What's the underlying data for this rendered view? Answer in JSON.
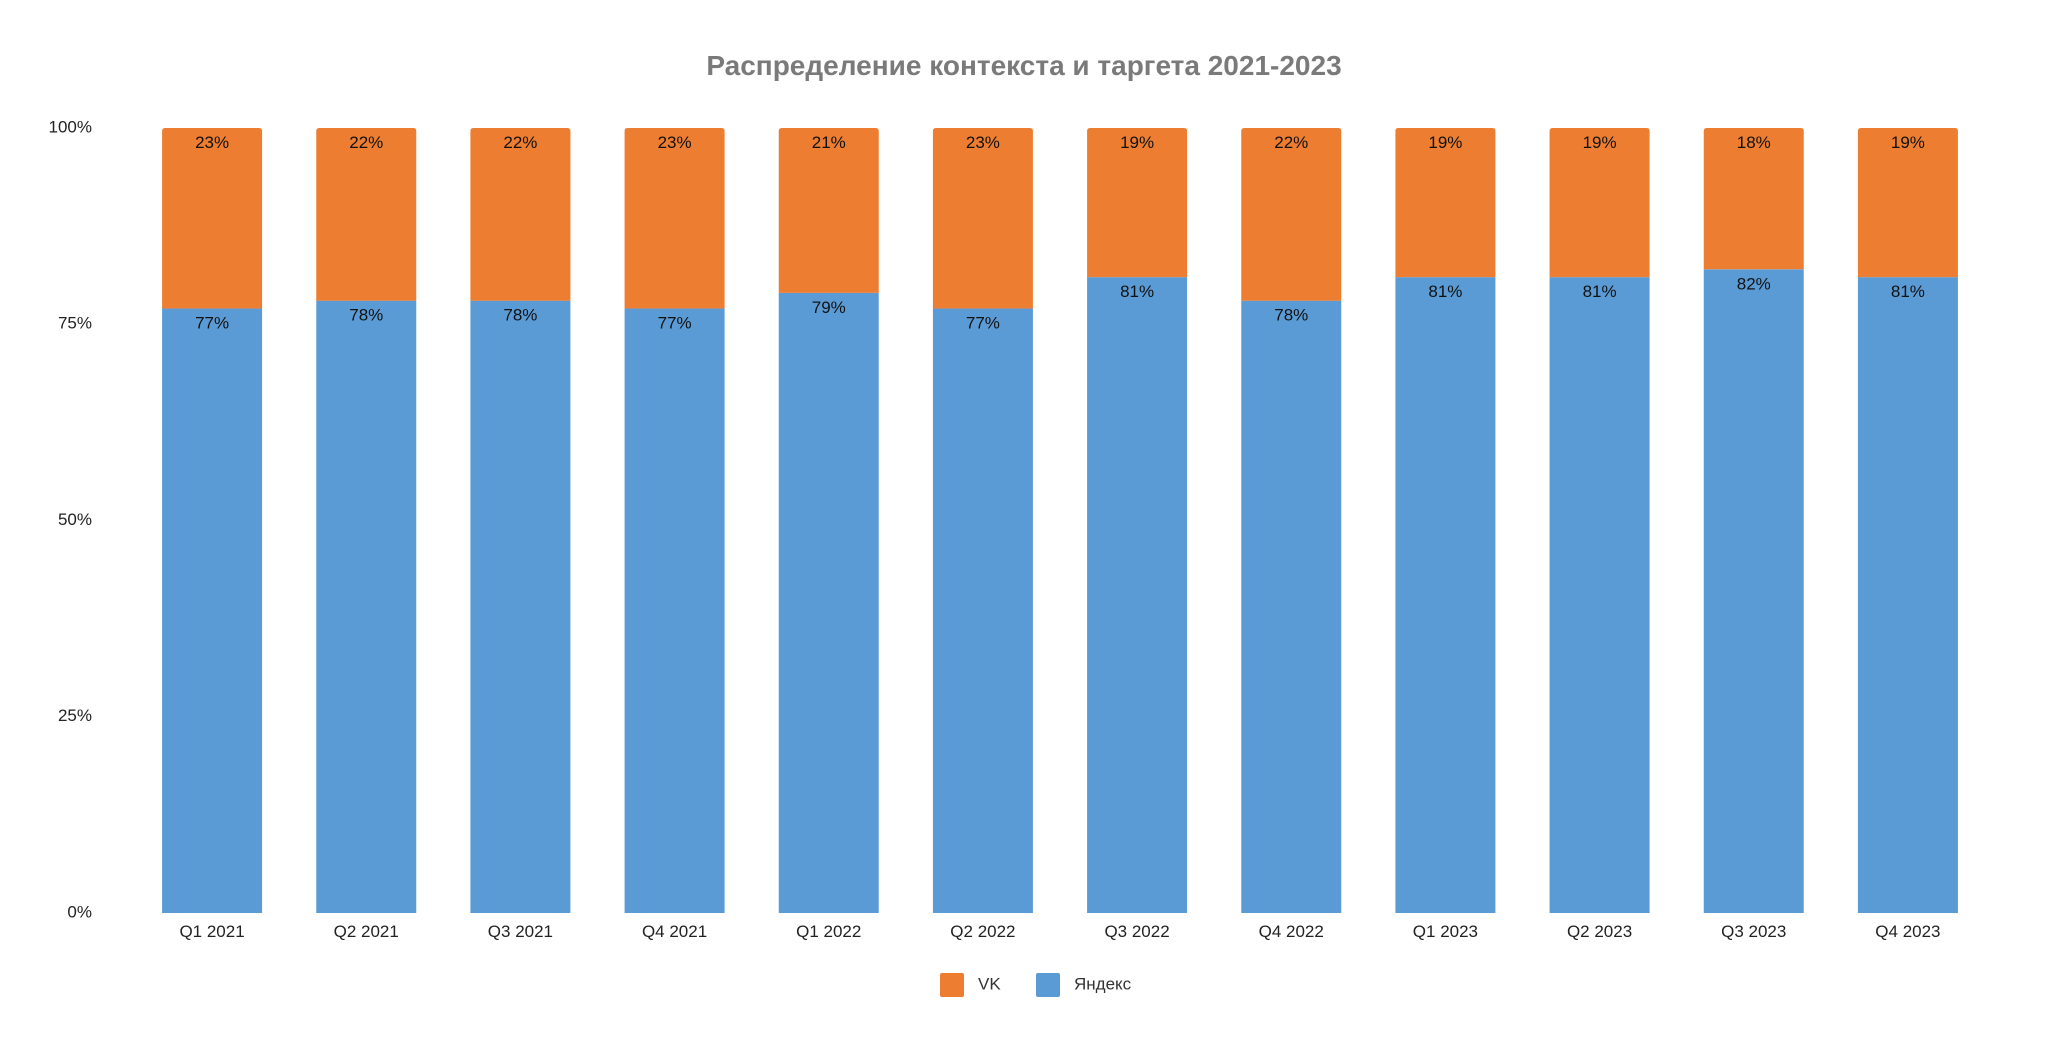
{
  "chart_data": {
    "type": "bar",
    "stacked": true,
    "percent": true,
    "title": "Распределение контекста и таргета 2021-2023",
    "categories": [
      "Q1 2021",
      "Q2 2021",
      "Q3 2021",
      "Q4 2021",
      "Q1 2022",
      "Q2 2022",
      "Q3 2022",
      "Q4 2022",
      "Q1 2023",
      "Q2 2023",
      "Q3 2023",
      "Q4 2023"
    ],
    "series": [
      {
        "name": "Яндекс",
        "color": "#5b9bd5",
        "values": [
          77,
          78,
          78,
          77,
          79,
          77,
          81,
          78,
          81,
          81,
          82,
          81
        ],
        "labels": [
          "77%",
          "78%",
          "78%",
          "77%",
          "79%",
          "77%",
          "81%",
          "78%",
          "81%",
          "81%",
          "82%",
          "81%"
        ]
      },
      {
        "name": "VK",
        "color": "#ed7d31",
        "values": [
          23,
          22,
          22,
          23,
          21,
          23,
          19,
          22,
          19,
          19,
          18,
          19
        ],
        "labels": [
          "23%",
          "22%",
          "22%",
          "23%",
          "21%",
          "23%",
          "19%",
          "22%",
          "19%",
          "19%",
          "18%",
          "19%"
        ]
      }
    ],
    "legend_order": [
      "VK",
      "Яндекс"
    ],
    "legend_position": "bottom",
    "ylim": [
      0,
      100
    ],
    "yticks": [
      "0%",
      "25%",
      "50%",
      "75%",
      "100%"
    ],
    "grid": false
  }
}
